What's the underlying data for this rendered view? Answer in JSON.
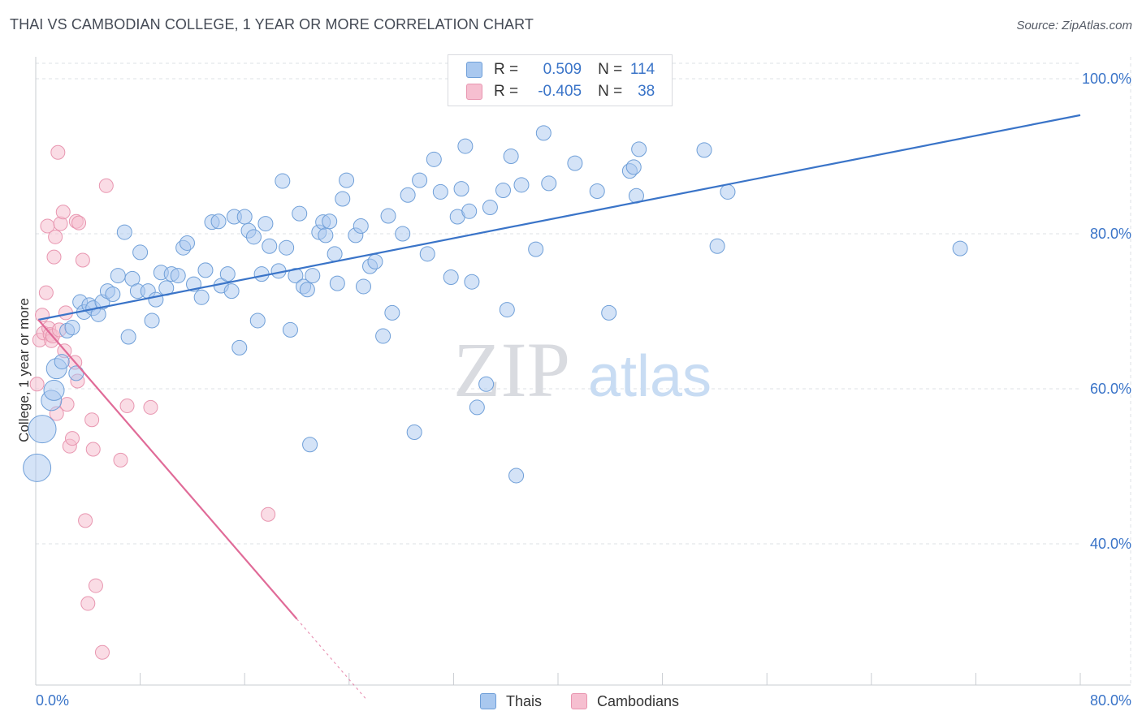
{
  "header": {
    "title": "THAI VS CAMBODIAN COLLEGE, 1 YEAR OR MORE CORRELATION CHART",
    "source": "Source: ZipAtlas.com"
  },
  "watermark": {
    "zip": "ZIP",
    "atlas": "atlas"
  },
  "legend_stats": {
    "r_label": "R =",
    "n_label": "N =",
    "thai": {
      "r": "0.509",
      "n": "114"
    },
    "cambodian": {
      "r": "-0.405",
      "n": "38"
    }
  },
  "colors": {
    "thai_fill": "#a9c8ef",
    "thai_stroke": "#6f9fd8",
    "thai_line": "#3a74c8",
    "cambodian_fill": "#f6bfd0",
    "cambodian_stroke": "#e896b0",
    "cambodian_line": "#e06b98",
    "grid": "#dde0e5",
    "tick_text": "#3a74c8"
  },
  "chart_data": {
    "type": "scatter",
    "title": "THAI VS CAMBODIAN COLLEGE, 1 YEAR OR MORE CORRELATION CHART",
    "xlabel": "",
    "ylabel": "College, 1 year or more",
    "xlim": [
      0,
      80
    ],
    "ylim": [
      20,
      104
    ],
    "x_ticks": [
      "0.0%",
      "80.0%"
    ],
    "y_ticks": [
      "40.0%",
      "60.0%",
      "80.0%",
      "100.0%"
    ],
    "y_tick_values": [
      40,
      60,
      80,
      100
    ],
    "grid": true,
    "legend_position": "bottom",
    "series": [
      {
        "name": "Thais",
        "r": 0.509,
        "n": 114,
        "trend": {
          "x": [
            0.2,
            80
          ],
          "y": [
            68.9,
            95.3
          ]
        },
        "points": [
          [
            0.1,
            49.8
          ],
          [
            0.5,
            54.8
          ],
          [
            1.2,
            58.5
          ],
          [
            1.4,
            59.8
          ],
          [
            1.6,
            62.6
          ],
          [
            2.0,
            63.5
          ],
          [
            2.4,
            67.5
          ],
          [
            2.8,
            67.9
          ],
          [
            3.1,
            62.0
          ],
          [
            3.4,
            71.2
          ],
          [
            3.7,
            69.9
          ],
          [
            4.1,
            70.8
          ],
          [
            4.4,
            70.4
          ],
          [
            4.8,
            69.6
          ],
          [
            5.1,
            71.2
          ],
          [
            5.5,
            72.6
          ],
          [
            5.9,
            72.2
          ],
          [
            6.3,
            74.6
          ],
          [
            6.8,
            80.2
          ],
          [
            7.1,
            66.7
          ],
          [
            7.4,
            74.2
          ],
          [
            7.8,
            72.6
          ],
          [
            8.0,
            77.6
          ],
          [
            8.6,
            72.6
          ],
          [
            8.9,
            68.8
          ],
          [
            9.2,
            71.5
          ],
          [
            9.6,
            75.0
          ],
          [
            10.0,
            73.0
          ],
          [
            10.4,
            74.8
          ],
          [
            10.9,
            74.6
          ],
          [
            11.3,
            78.2
          ],
          [
            11.6,
            78.8
          ],
          [
            12.1,
            73.5
          ],
          [
            12.7,
            71.8
          ],
          [
            13.0,
            75.3
          ],
          [
            13.5,
            81.5
          ],
          [
            14.0,
            81.6
          ],
          [
            14.2,
            73.3
          ],
          [
            14.7,
            74.8
          ],
          [
            15.0,
            72.6
          ],
          [
            15.2,
            82.2
          ],
          [
            15.6,
            65.3
          ],
          [
            16.0,
            82.2
          ],
          [
            16.3,
            80.4
          ],
          [
            16.7,
            79.6
          ],
          [
            17.0,
            68.8
          ],
          [
            17.3,
            74.8
          ],
          [
            17.6,
            81.3
          ],
          [
            17.9,
            78.4
          ],
          [
            18.6,
            75.2
          ],
          [
            18.9,
            86.8
          ],
          [
            19.2,
            78.2
          ],
          [
            19.5,
            67.6
          ],
          [
            19.9,
            74.6
          ],
          [
            20.2,
            82.6
          ],
          [
            20.5,
            73.2
          ],
          [
            20.8,
            72.8
          ],
          [
            21.2,
            74.6
          ],
          [
            21.7,
            80.2
          ],
          [
            22.0,
            81.5
          ],
          [
            22.2,
            79.8
          ],
          [
            22.5,
            81.6
          ],
          [
            22.9,
            77.4
          ],
          [
            23.1,
            73.6
          ],
          [
            23.5,
            84.5
          ],
          [
            23.8,
            86.9
          ],
          [
            24.5,
            79.8
          ],
          [
            24.9,
            81.0
          ],
          [
            25.1,
            73.2
          ],
          [
            25.6,
            75.8
          ],
          [
            26.0,
            76.4
          ],
          [
            26.6,
            66.8
          ],
          [
            27.0,
            82.3
          ],
          [
            27.3,
            69.8
          ],
          [
            28.1,
            80.0
          ],
          [
            28.5,
            85.0
          ],
          [
            29.0,
            54.4
          ],
          [
            29.4,
            86.9
          ],
          [
            30.0,
            77.4
          ],
          [
            30.5,
            89.6
          ],
          [
            31.0,
            85.4
          ],
          [
            31.8,
            74.4
          ],
          [
            32.3,
            82.2
          ],
          [
            32.6,
            85.8
          ],
          [
            32.9,
            91.3
          ],
          [
            33.2,
            82.9
          ],
          [
            33.4,
            73.8
          ],
          [
            33.8,
            57.6
          ],
          [
            34.5,
            60.6
          ],
          [
            34.8,
            83.4
          ],
          [
            35.8,
            85.6
          ],
          [
            36.1,
            70.2
          ],
          [
            36.4,
            90.0
          ],
          [
            36.8,
            48.8
          ],
          [
            37.2,
            86.3
          ],
          [
            38.3,
            78.0
          ],
          [
            38.9,
            93.0
          ],
          [
            39.3,
            86.5
          ],
          [
            41.3,
            89.1
          ],
          [
            43.0,
            85.5
          ],
          [
            43.9,
            69.8
          ],
          [
            45.5,
            88.1
          ],
          [
            45.8,
            88.6
          ],
          [
            46.0,
            84.9
          ],
          [
            46.2,
            90.9
          ],
          [
            47.8,
            99.8
          ],
          [
            51.2,
            90.8
          ],
          [
            52.2,
            78.4
          ],
          [
            53.0,
            85.4
          ],
          [
            70.8,
            78.1
          ],
          [
            21.0,
            52.8
          ]
        ]
      },
      {
        "name": "Cambodians",
        "r": -0.405,
        "n": 38,
        "trend": {
          "x": [
            0.2,
            20
          ],
          "y": [
            68.9,
            30.3
          ]
        },
        "points": [
          [
            0.1,
            60.6
          ],
          [
            0.3,
            66.3
          ],
          [
            0.5,
            69.5
          ],
          [
            0.6,
            67.2
          ],
          [
            0.8,
            72.4
          ],
          [
            0.9,
            81.0
          ],
          [
            1.0,
            67.8
          ],
          [
            1.1,
            67.0
          ],
          [
            1.2,
            66.2
          ],
          [
            1.3,
            66.8
          ],
          [
            1.4,
            77.0
          ],
          [
            1.5,
            79.6
          ],
          [
            1.6,
            56.8
          ],
          [
            1.7,
            90.5
          ],
          [
            1.8,
            67.6
          ],
          [
            1.9,
            81.3
          ],
          [
            2.1,
            82.8
          ],
          [
            2.2,
            64.9
          ],
          [
            2.3,
            69.8
          ],
          [
            2.4,
            58.0
          ],
          [
            2.6,
            52.6
          ],
          [
            2.8,
            53.6
          ],
          [
            3.0,
            63.4
          ],
          [
            3.1,
            81.6
          ],
          [
            3.3,
            81.4
          ],
          [
            3.6,
            76.6
          ],
          [
            3.8,
            43.0
          ],
          [
            4.0,
            32.3
          ],
          [
            4.3,
            56.0
          ],
          [
            4.4,
            52.2
          ],
          [
            4.6,
            34.6
          ],
          [
            5.1,
            26.0
          ],
          [
            5.4,
            86.2
          ],
          [
            6.5,
            50.8
          ],
          [
            7.0,
            57.8
          ],
          [
            8.8,
            57.6
          ],
          [
            17.8,
            43.8
          ],
          [
            3.2,
            61.0
          ]
        ]
      }
    ]
  },
  "legend_bottom": {
    "thai": "Thais",
    "cambodian": "Cambodians"
  }
}
